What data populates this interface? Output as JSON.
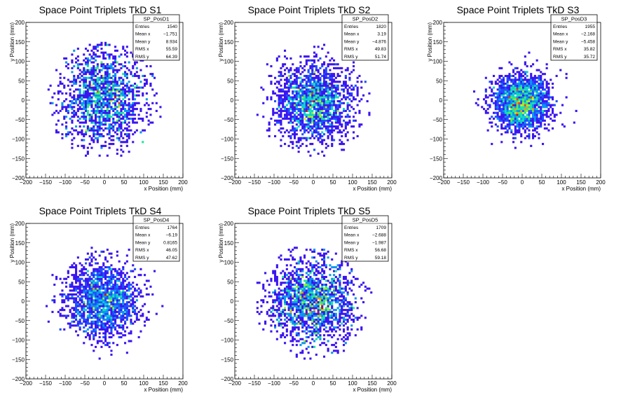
{
  "figure": {
    "columns": 3
  },
  "chart_data": [
    {
      "type": "heatmap",
      "title": "Space Point Triplets TkD S1",
      "xlabel": "x Position (mm)",
      "ylabel": "y Position (mm)",
      "xlim": [
        -200,
        200
      ],
      "ylim": [
        -200,
        200
      ],
      "xticks": [
        -200,
        -150,
        -100,
        -50,
        0,
        50,
        100,
        150,
        200
      ],
      "yticks": [
        -200,
        -150,
        -100,
        -50,
        0,
        50,
        100,
        150,
        200
      ],
      "stats": {
        "name": "SP_PosD1",
        "rows": [
          {
            "label": "Entries",
            "value": "1540"
          },
          {
            "label": "Mean x",
            "value": "−1.751"
          },
          {
            "label": "Mean y",
            "value": "8.934"
          },
          {
            "label": "RMS x",
            "value": "55.59"
          },
          {
            "label": "RMS y",
            "value": "64.39"
          }
        ]
      },
      "distribution": {
        "entries": 1540,
        "mean_x": -1.751,
        "mean_y": 8.934,
        "rms_x": 55.59,
        "rms_y": 64.39,
        "radius": 150
      }
    },
    {
      "type": "heatmap",
      "title": "Space Point Triplets TkD S2",
      "xlabel": "x Position (mm)",
      "ylabel": "y Position (mm)",
      "xlim": [
        -200,
        200
      ],
      "ylim": [
        -200,
        200
      ],
      "xticks": [
        -200,
        -150,
        -100,
        -50,
        0,
        50,
        100,
        150,
        200
      ],
      "yticks": [
        -200,
        -150,
        -100,
        -50,
        0,
        50,
        100,
        150,
        200
      ],
      "stats": {
        "name": "SP_PosD2",
        "rows": [
          {
            "label": "Entries",
            "value": "1820"
          },
          {
            "label": "Mean x",
            "value": "3.19"
          },
          {
            "label": "Mean y",
            "value": "−4.876"
          },
          {
            "label": "RMS x",
            "value": "49.83"
          },
          {
            "label": "RMS y",
            "value": "51.74"
          }
        ]
      },
      "distribution": {
        "entries": 1820,
        "mean_x": 3.19,
        "mean_y": -4.876,
        "rms_x": 49.83,
        "rms_y": 51.74,
        "radius": 150
      }
    },
    {
      "type": "heatmap",
      "title": "Space Point Triplets TkD S3",
      "xlabel": "x Position (mm)",
      "ylabel": "y Position (mm)",
      "xlim": [
        -200,
        200
      ],
      "ylim": [
        -200,
        200
      ],
      "xticks": [
        -200,
        -150,
        -100,
        -50,
        0,
        50,
        100,
        150,
        200
      ],
      "yticks": [
        -200,
        -150,
        -100,
        -50,
        0,
        50,
        100,
        150,
        200
      ],
      "stats": {
        "name": "SP_PosD3",
        "rows": [
          {
            "label": "Entries",
            "value": "1955"
          },
          {
            "label": "Mean x",
            "value": "−2.168"
          },
          {
            "label": "Mean y",
            "value": "−5.458"
          },
          {
            "label": "RMS x",
            "value": "35.82"
          },
          {
            "label": "RMS y",
            "value": "35.72"
          }
        ]
      },
      "distribution": {
        "entries": 1955,
        "mean_x": -2.168,
        "mean_y": -5.458,
        "rms_x": 35.82,
        "rms_y": 35.72,
        "radius": 150
      }
    },
    {
      "type": "heatmap",
      "title": "Space Point Triplets TkD S4",
      "xlabel": "x Position (mm)",
      "ylabel": "y Position (mm)",
      "xlim": [
        -200,
        200
      ],
      "ylim": [
        -200,
        200
      ],
      "xticks": [
        -200,
        -150,
        -100,
        -50,
        0,
        50,
        100,
        150,
        200
      ],
      "yticks": [
        -200,
        -150,
        -100,
        -50,
        0,
        50,
        100,
        150,
        200
      ],
      "stats": {
        "name": "SP_PosD4",
        "rows": [
          {
            "label": "Entries",
            "value": "1764"
          },
          {
            "label": "Mean x",
            "value": "−6.19"
          },
          {
            "label": "Mean y",
            "value": "0.8165"
          },
          {
            "label": "RMS x",
            "value": "46.05"
          },
          {
            "label": "RMS y",
            "value": "47.62"
          }
        ]
      },
      "distribution": {
        "entries": 1764,
        "mean_x": -6.19,
        "mean_y": 0.8165,
        "rms_x": 46.05,
        "rms_y": 47.62,
        "radius": 150
      }
    },
    {
      "type": "heatmap",
      "title": "Space Point Triplets TkD S5",
      "xlabel": "x Position (mm)",
      "ylabel": "y Position (mm)",
      "xlim": [
        -200,
        200
      ],
      "ylim": [
        -200,
        200
      ],
      "xticks": [
        -200,
        -150,
        -100,
        -50,
        0,
        50,
        100,
        150,
        200
      ],
      "yticks": [
        -200,
        -150,
        -100,
        -50,
        0,
        50,
        100,
        150,
        200
      ],
      "stats": {
        "name": "SP_PosD5",
        "rows": [
          {
            "label": "Entries",
            "value": "1709"
          },
          {
            "label": "Mean x",
            "value": "−2.688"
          },
          {
            "label": "Mean y",
            "value": "−1.987"
          },
          {
            "label": "RMS x",
            "value": "56.68"
          },
          {
            "label": "RMS y",
            "value": "59.18"
          }
        ]
      },
      "distribution": {
        "entries": 1709,
        "mean_x": -2.688,
        "mean_y": -1.987,
        "rms_x": 56.68,
        "rms_y": 59.18,
        "radius": 150
      }
    }
  ],
  "palette": [
    "#6a00d8",
    "#3c14f0",
    "#1e50ff",
    "#0a96f0",
    "#0ad2d2",
    "#1ee6a0",
    "#50f050",
    "#a0f028",
    "#f0e61e",
    "#ff9614",
    "#f03c14",
    "#d20a0a"
  ]
}
